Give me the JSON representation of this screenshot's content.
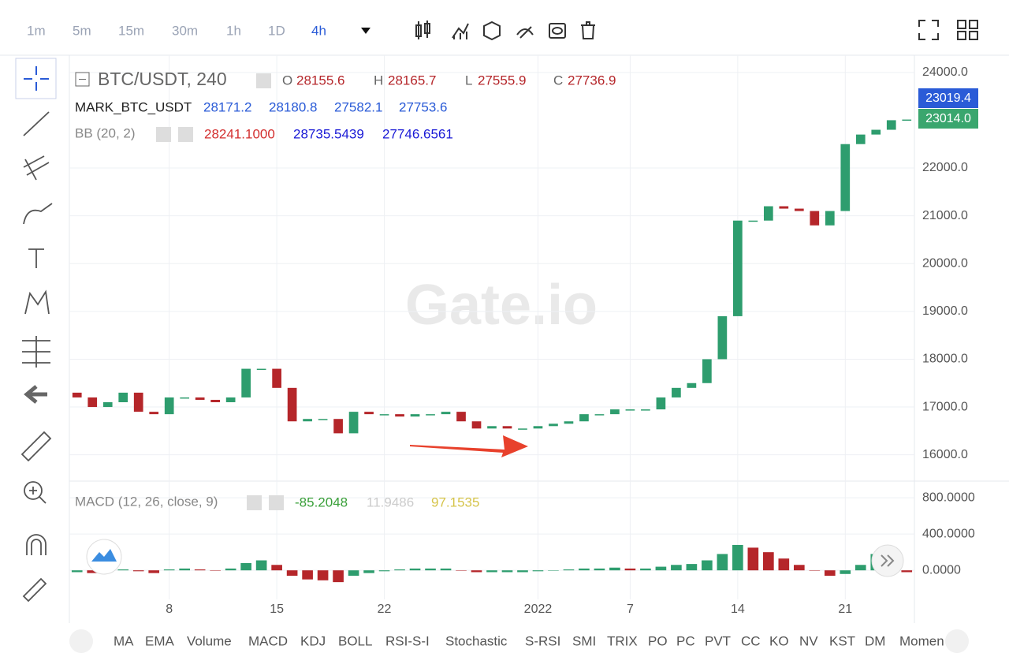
{
  "toolbar": {
    "timeframes": [
      "1m",
      "5m",
      "15m",
      "30m",
      "1h",
      "1D",
      "4h"
    ]
  },
  "legend": {
    "symbol": "BTC/USDT, 240",
    "o_label": "O",
    "o_value": "28155.6",
    "h_label": "H",
    "h_value": "28165.7",
    "l_label": "L",
    "l_value": "27555.9",
    "c_label": "C",
    "c_value": "27736.9",
    "mark_name": "MARK_BTC_USDT",
    "mark_values": [
      "28171.2",
      "28180.8",
      "27582.1",
      "27753.6"
    ],
    "bb_name": "BB (20, 2)",
    "bb_values": [
      "28241.1000",
      "28735.5439",
      "27746.6561"
    ],
    "macd_name": "MACD (12, 26, close, 9)",
    "macd_values": [
      "-85.2048",
      "11.9486",
      "97.1535"
    ]
  },
  "watermark": "Gate.io",
  "price_badges": [
    "23019.4",
    "23014.0"
  ],
  "indicator_tabs": [
    "MA",
    "EMA",
    "Volume",
    "MACD",
    "KDJ",
    "BOLL",
    "RSI-S-I",
    "Stochastic",
    "S-RSI",
    "SMI",
    "TRIX",
    "PO",
    "PC",
    "PVT",
    "CC",
    "KO",
    "NV",
    "KST",
    "DM",
    "Momen"
  ],
  "chart_data": {
    "type": "candlestick",
    "categories": [
      null,
      null,
      null,
      null,
      null,
      null,
      "8",
      null,
      null,
      null,
      null,
      null,
      null,
      "15",
      null,
      null,
      null,
      null,
      null,
      null,
      "22",
      null,
      null,
      null,
      null,
      null,
      null,
      null,
      null,
      null,
      "2022",
      null,
      null,
      null,
      null,
      null,
      "7",
      null,
      null,
      null,
      null,
      null,
      null,
      "14",
      null,
      null,
      null,
      null,
      null,
      null,
      "21",
      null,
      null,
      null,
      null
    ],
    "open": [
      17300,
      17200,
      17000,
      17100,
      17300,
      16900,
      16850,
      17200,
      17200,
      17150,
      17100,
      17200,
      17800,
      17800,
      17400,
      16700,
      16750,
      16750,
      16450,
      16900,
      16850,
      16850,
      16800,
      16850,
      16850,
      16900,
      16700,
      16550,
      16600,
      16550,
      16550,
      16600,
      16650,
      16700,
      16850,
      16850,
      16950,
      16950,
      16950,
      17200,
      17400,
      17500,
      18000,
      18900,
      20900,
      20900,
      21200,
      21150,
      21100,
      20800,
      21100,
      22500,
      22700,
      22800,
      23000
    ],
    "close": [
      17200,
      17000,
      17100,
      17300,
      16900,
      16850,
      17200,
      17200,
      17150,
      17100,
      17200,
      17800,
      17800,
      17400,
      16700,
      16750,
      16750,
      16450,
      16900,
      16850,
      16850,
      16800,
      16850,
      16850,
      16900,
      16700,
      16550,
      16600,
      16550,
      16550,
      16600,
      16650,
      16700,
      16850,
      16850,
      16950,
      16950,
      16950,
      17200,
      17400,
      17500,
      18000,
      18900,
      20900,
      20900,
      21200,
      21150,
      21100,
      20800,
      21100,
      22500,
      22700,
      22800,
      23000,
      23014
    ],
    "up_color": "#2e9d6e",
    "down_color": "#b5262a",
    "ylim": [
      15450,
      24360
    ],
    "yticks": [
      {
        "value": 16000,
        "label": "16000.0"
      },
      {
        "value": 17000,
        "label": "17000.0"
      },
      {
        "value": 18000,
        "label": "18000.0"
      },
      {
        "value": 19000,
        "label": "19000.0"
      },
      {
        "value": 20000,
        "label": "20000.0"
      },
      {
        "value": 21000,
        "label": "21000.0"
      },
      {
        "value": 22000,
        "label": "22000.0"
      },
      {
        "value": 24000,
        "label": "24000.0"
      }
    ],
    "grid": true,
    "macd": {
      "type": "bar",
      "values": [
        -20,
        -30,
        -20,
        10,
        -10,
        -30,
        10,
        20,
        10,
        0,
        20,
        80,
        110,
        60,
        -60,
        -100,
        -110,
        -130,
        -60,
        -30,
        -10,
        10,
        20,
        20,
        20,
        0,
        -20,
        -20,
        -20,
        -20,
        -10,
        0,
        10,
        20,
        20,
        30,
        20,
        20,
        40,
        60,
        70,
        110,
        180,
        280,
        250,
        200,
        130,
        60,
        0,
        -60,
        -40,
        60,
        180,
        150,
        -20
      ],
      "ylim": [
        -320,
        940
      ],
      "yticks": [
        {
          "value": 0,
          "label": "0.0000"
        },
        {
          "value": 400,
          "label": "400.0000"
        },
        {
          "value": 800,
          "label": "800.0000"
        }
      ]
    }
  }
}
